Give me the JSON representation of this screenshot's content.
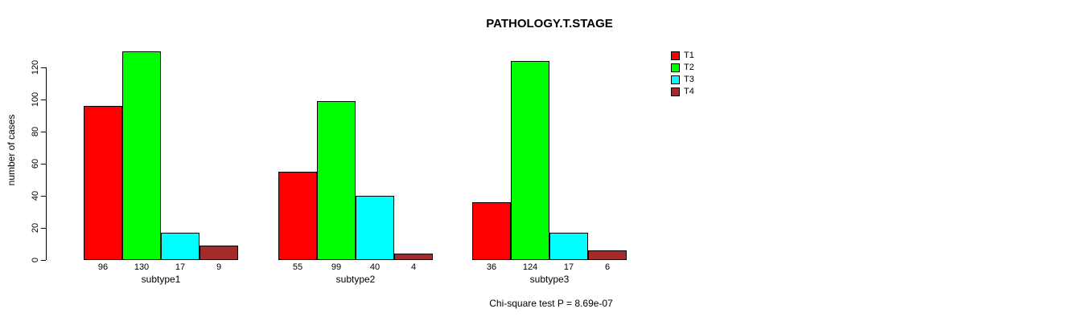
{
  "chart_data": {
    "type": "bar",
    "title": "PATHOLOGY.T.STAGE",
    "ylabel": "number of cases",
    "xlabel": "",
    "categories": [
      "subtype1",
      "subtype2",
      "subtype3"
    ],
    "series": [
      {
        "name": "T1",
        "color": "#ff0000",
        "values": [
          96,
          55,
          36
        ]
      },
      {
        "name": "T2",
        "color": "#00ff00",
        "values": [
          130,
          99,
          124
        ]
      },
      {
        "name": "T3",
        "color": "#00ffff",
        "values": [
          17,
          40,
          17
        ]
      },
      {
        "name": "T4",
        "color": "#a52a2a",
        "values": [
          9,
          4,
          6
        ]
      }
    ],
    "ylim": [
      0,
      120
    ],
    "yticks": [
      0,
      20,
      40,
      60,
      80,
      100,
      120
    ],
    "bar_value_labels": true,
    "grid": false,
    "legend_position": "top-right",
    "axis_color": "#000000",
    "bar_border_color": "#000000",
    "footnote": "Chi-square test P = 8.69e-07"
  }
}
